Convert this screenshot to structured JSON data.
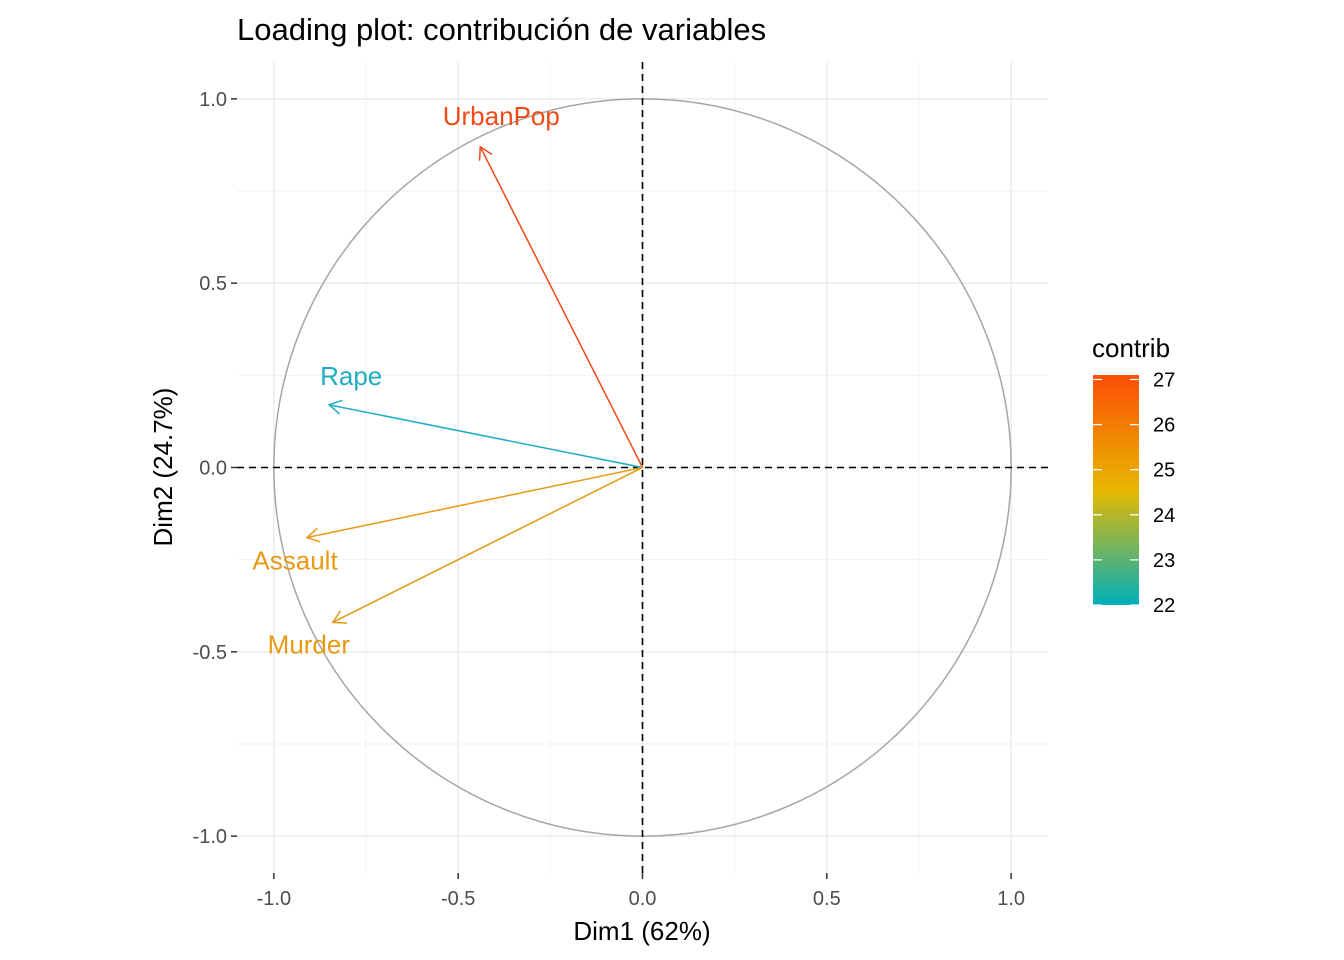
{
  "chart_data": {
    "type": "scatter",
    "title": "Loading plot: contribución de variables",
    "xlabel": "Dim1 (62%)",
    "ylabel": "Dim2 (24.7%)",
    "xlim": [
      -1.1,
      1.1
    ],
    "ylim": [
      -1.1,
      1.1
    ],
    "x_ticks": [
      -1.0,
      -0.5,
      0.0,
      0.5,
      1.0
    ],
    "y_ticks": [
      -1.0,
      -0.5,
      0.0,
      0.5,
      1.0
    ],
    "x_tick_labels": [
      "-1.0",
      "-0.5",
      "0.0",
      "0.5",
      "1.0"
    ],
    "y_tick_labels": [
      "-1.0",
      "-0.5",
      "0.0",
      "0.5",
      "1.0"
    ],
    "grid": true,
    "correlation_circle": true,
    "reference_lines": [
      0,
      0
    ],
    "variables": [
      {
        "name": "UrbanPop",
        "x": -0.44,
        "y": 0.87,
        "contrib": 27.1,
        "color": "#F04A17"
      },
      {
        "name": "Rape",
        "x": -0.85,
        "y": 0.17,
        "contrib": 22.0,
        "color": "#1FADC3"
      },
      {
        "name": "Assault",
        "x": -0.91,
        "y": -0.19,
        "contrib": 25.7,
        "color": "#E89A15"
      },
      {
        "name": "Murder",
        "x": -0.84,
        "y": -0.42,
        "contrib": 25.7,
        "color": "#E89A15"
      }
    ],
    "legend": {
      "title": "contrib",
      "position": "right",
      "range": [
        22,
        27.1
      ],
      "ticks": [
        22,
        23,
        24,
        25,
        26,
        27
      ],
      "tick_labels": [
        "22",
        "23",
        "24",
        "25",
        "26",
        "27"
      ],
      "colors": [
        "#00AFBB",
        "#E7B800",
        "#FC4E07"
      ]
    }
  }
}
